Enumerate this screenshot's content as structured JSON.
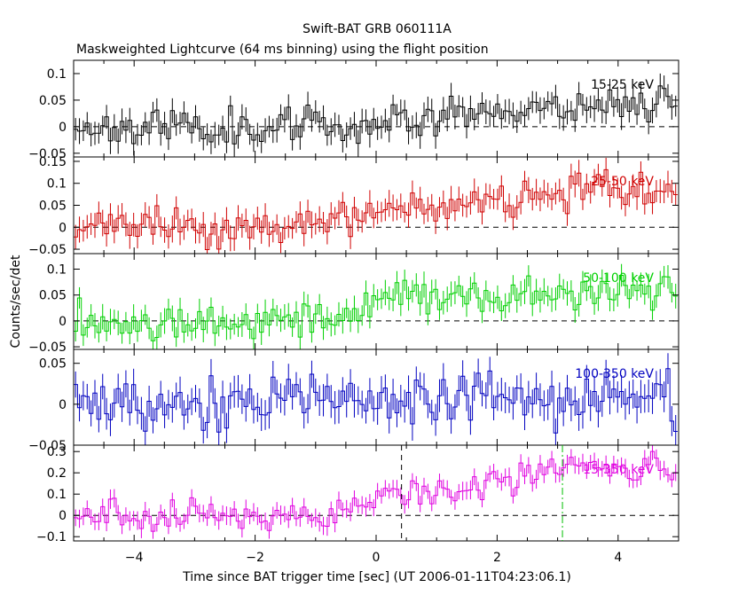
{
  "title": "Swift-BAT GRB 060111A",
  "subtitle": "Maskweighted Lightcurve (64 ms binning) using the flight position",
  "xlabel": "Time since BAT trigger time [sec] (UT 2006-01-11T04:23:06.1)",
  "ylabel": "Counts/sec/det",
  "colors": {
    "axis": "#000000",
    "band_15_25": "#000000",
    "band_25_50": "#d00000",
    "band_50_100": "#00d000",
    "band_100_350": "#0000c0",
    "band_15_350": "#e000e0",
    "dashed_green": "#00c000"
  },
  "chart_data": {
    "type": "line",
    "xlim": [
      -5,
      5
    ],
    "x_ticks": [
      -4,
      -2,
      0,
      2,
      4
    ],
    "x_tick_labels": [
      "−4",
      "−2",
      "0",
      "2",
      "4"
    ],
    "bin_width_s": 0.064,
    "vertical_markers": [
      {
        "x": 0.42,
        "style": "dashed",
        "color": "#000000",
        "panel": "15-350 keV"
      },
      {
        "x": 3.08,
        "style": "dash-dot",
        "color": "#00c000",
        "panel": "15-350 keV"
      }
    ],
    "panels": [
      {
        "name": "15-25 keV",
        "color": "#000000",
        "ylim": [
          -0.057,
          0.125
        ],
        "y_ticks": [
          -0.05,
          0,
          0.05,
          0.1
        ],
        "y_tick_labels": [
          "−0.05",
          "0",
          "0.05",
          "0.1"
        ],
        "zero_line": true,
        "trend": [
          [
            -5,
            0.0
          ],
          [
            -0.5,
            0.0
          ],
          [
            0.5,
            0.018
          ],
          [
            2.5,
            0.035
          ],
          [
            5,
            0.05
          ]
        ],
        "noise": 0.017,
        "err": 0.022,
        "seed": 11
      },
      {
        "name": "25-50 keV",
        "color": "#d00000",
        "ylim": [
          -0.06,
          0.16
        ],
        "y_ticks": [
          -0.05,
          0,
          0.05,
          0.1,
          0.15
        ],
        "y_tick_labels": [
          "−0.05",
          "0",
          "0.05",
          "0.1",
          "0.15"
        ],
        "zero_line": true,
        "trend": [
          [
            -5,
            0.0
          ],
          [
            -1.0,
            0.0
          ],
          [
            0,
            0.03
          ],
          [
            1,
            0.04
          ],
          [
            2.5,
            0.08
          ],
          [
            5,
            0.085
          ]
        ],
        "noise": 0.02,
        "err": 0.027,
        "seed": 23
      },
      {
        "name": "50-100 keV",
        "color": "#00d000",
        "ylim": [
          -0.055,
          0.13
        ],
        "y_ticks": [
          -0.05,
          0,
          0.05,
          0.1
        ],
        "y_tick_labels": [
          "−0.05",
          "0",
          "0.05",
          "0.1"
        ],
        "zero_line": true,
        "trend": [
          [
            -5,
            0.0
          ],
          [
            -1.0,
            0.0
          ],
          [
            0,
            0.04
          ],
          [
            2.5,
            0.05
          ],
          [
            5,
            0.06
          ]
        ],
        "noise": 0.018,
        "err": 0.022,
        "seed": 37
      },
      {
        "name": "100-350 keV",
        "color": "#0000c0",
        "ylim": [
          -0.05,
          0.067
        ],
        "y_ticks": [
          -0.05,
          0,
          0.05
        ],
        "y_tick_labels": [
          "−0.05",
          "0",
          "0.05"
        ],
        "zero_line": false,
        "trend": [
          [
            -5,
            0.0
          ],
          [
            1,
            0.005
          ],
          [
            5,
            0.01
          ]
        ],
        "noise": 0.017,
        "err": 0.018,
        "seed": 53
      },
      {
        "name": "15-350 keV",
        "color": "#e000e0",
        "ylim": [
          -0.12,
          0.33
        ],
        "y_ticks": [
          -0.1,
          0,
          0.1,
          0.2,
          0.3
        ],
        "y_tick_labels": [
          "−0.1",
          "0",
          "0.1",
          "0.2",
          "0.3"
        ],
        "zero_line": true,
        "trend": [
          [
            -5,
            0.0
          ],
          [
            -0.8,
            0.0
          ],
          [
            0,
            0.1
          ],
          [
            1.5,
            0.12
          ],
          [
            2.8,
            0.22
          ],
          [
            5,
            0.21
          ]
        ],
        "noise": 0.035,
        "err": 0.04,
        "seed": 71
      }
    ]
  }
}
